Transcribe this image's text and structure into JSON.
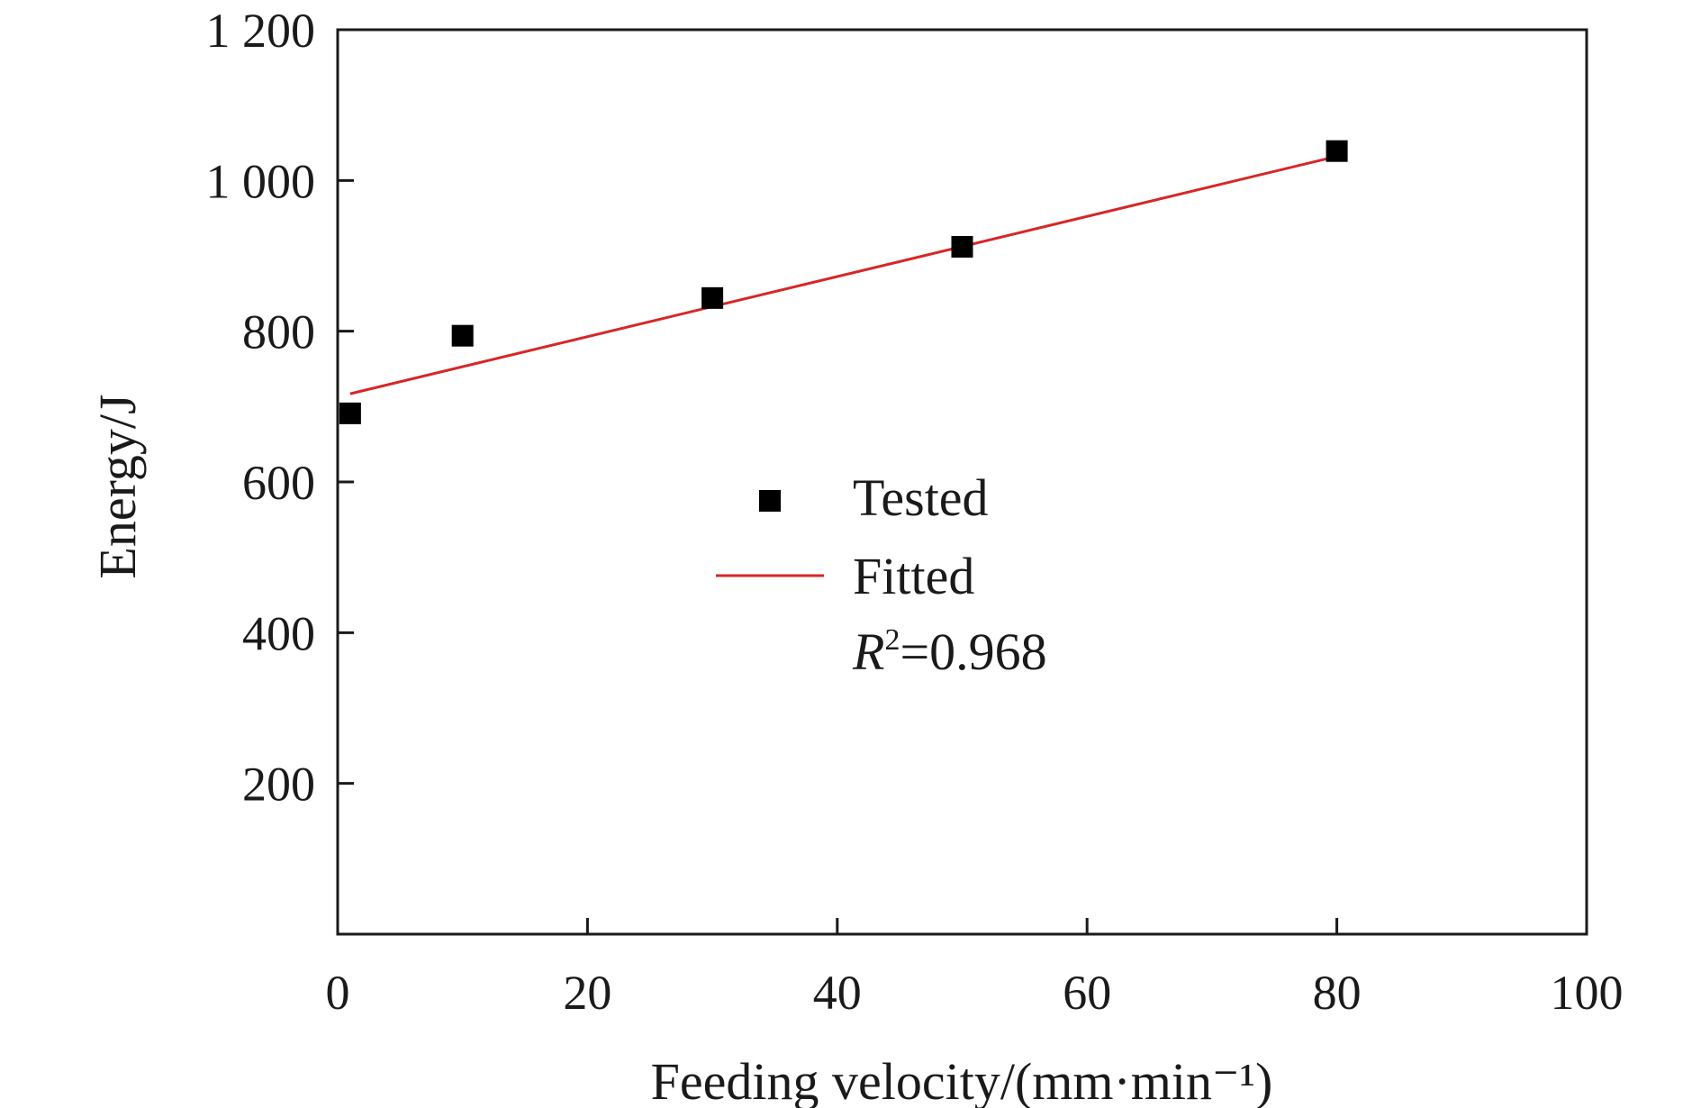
{
  "chart_data": {
    "type": "scatter",
    "xlabel": "Feeding velocity/(mm·min⁻¹)",
    "ylabel": "Energy/J",
    "xlim": [
      0,
      100
    ],
    "ylim": [
      0,
      1200
    ],
    "x_ticks": [
      0,
      20,
      40,
      60,
      80,
      100
    ],
    "y_ticks": [
      200,
      400,
      600,
      800,
      1000,
      1200
    ],
    "x_tick_labels": [
      "0",
      "20",
      "40",
      "60",
      "80",
      "100"
    ],
    "y_tick_labels": [
      "200",
      "400",
      "600",
      "800",
      "1 000",
      "1 200"
    ],
    "series": [
      {
        "name": "Tested",
        "kind": "scatter",
        "marker": "square",
        "color": "#000000",
        "x": [
          1,
          10,
          30,
          50,
          80
        ],
        "y": [
          691,
          794,
          844,
          912,
          1039
        ]
      },
      {
        "name": "Fitted",
        "kind": "line",
        "color": "#d62728",
        "x": [
          1,
          80
        ],
        "y": [
          717,
          1032
        ]
      }
    ],
    "annotation": {
      "r_symbol": "R",
      "r_power": "2",
      "r_value": "=0.968"
    },
    "legend_position": "center",
    "grid": false
  }
}
